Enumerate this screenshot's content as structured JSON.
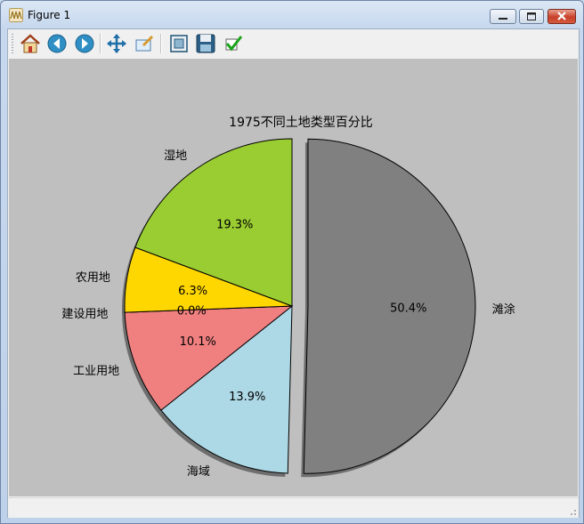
{
  "window": {
    "title": "Figure 1"
  },
  "toolbar": {
    "buttons": [
      {
        "name": "home",
        "icon": "home-icon"
      },
      {
        "name": "back",
        "icon": "back-arrow-icon"
      },
      {
        "name": "forward",
        "icon": "forward-arrow-icon"
      },
      {
        "name": "pan",
        "icon": "pan-move-icon"
      },
      {
        "name": "zoom",
        "icon": "zoom-rect-icon"
      },
      {
        "name": "subplots",
        "icon": "subplots-configure-icon"
      },
      {
        "name": "save",
        "icon": "save-floppy-icon"
      },
      {
        "name": "edit",
        "icon": "edit-check-icon"
      }
    ]
  },
  "statusbar": {
    "message": ""
  },
  "chart_data": {
    "type": "pie",
    "title": "1975不同土地类型百分比",
    "slices": [
      {
        "label": "滩涂",
        "value": 50.4,
        "pct_label": "50.4%",
        "color": "#808080",
        "exploded": true
      },
      {
        "label": "海域",
        "value": 13.9,
        "pct_label": "13.9%",
        "color": "#add8e6",
        "exploded": false
      },
      {
        "label": "工业用地",
        "value": 10.1,
        "pct_label": "10.1%",
        "color": "#f08080",
        "exploded": false
      },
      {
        "label": "建设用地",
        "value": 0.0,
        "pct_label": "0.0%",
        "color": "#ff69b4",
        "exploded": false
      },
      {
        "label": "农用地",
        "value": 6.3,
        "pct_label": "6.3%",
        "color": "#ffd700",
        "exploded": false
      },
      {
        "label": "湿地",
        "value": 19.3,
        "pct_label": "19.3%",
        "color": "#9acd32",
        "exploded": false
      }
    ],
    "start_angle_deg": 90,
    "direction": "clockwise",
    "shadow": true,
    "background": "#bfbfbf"
  }
}
